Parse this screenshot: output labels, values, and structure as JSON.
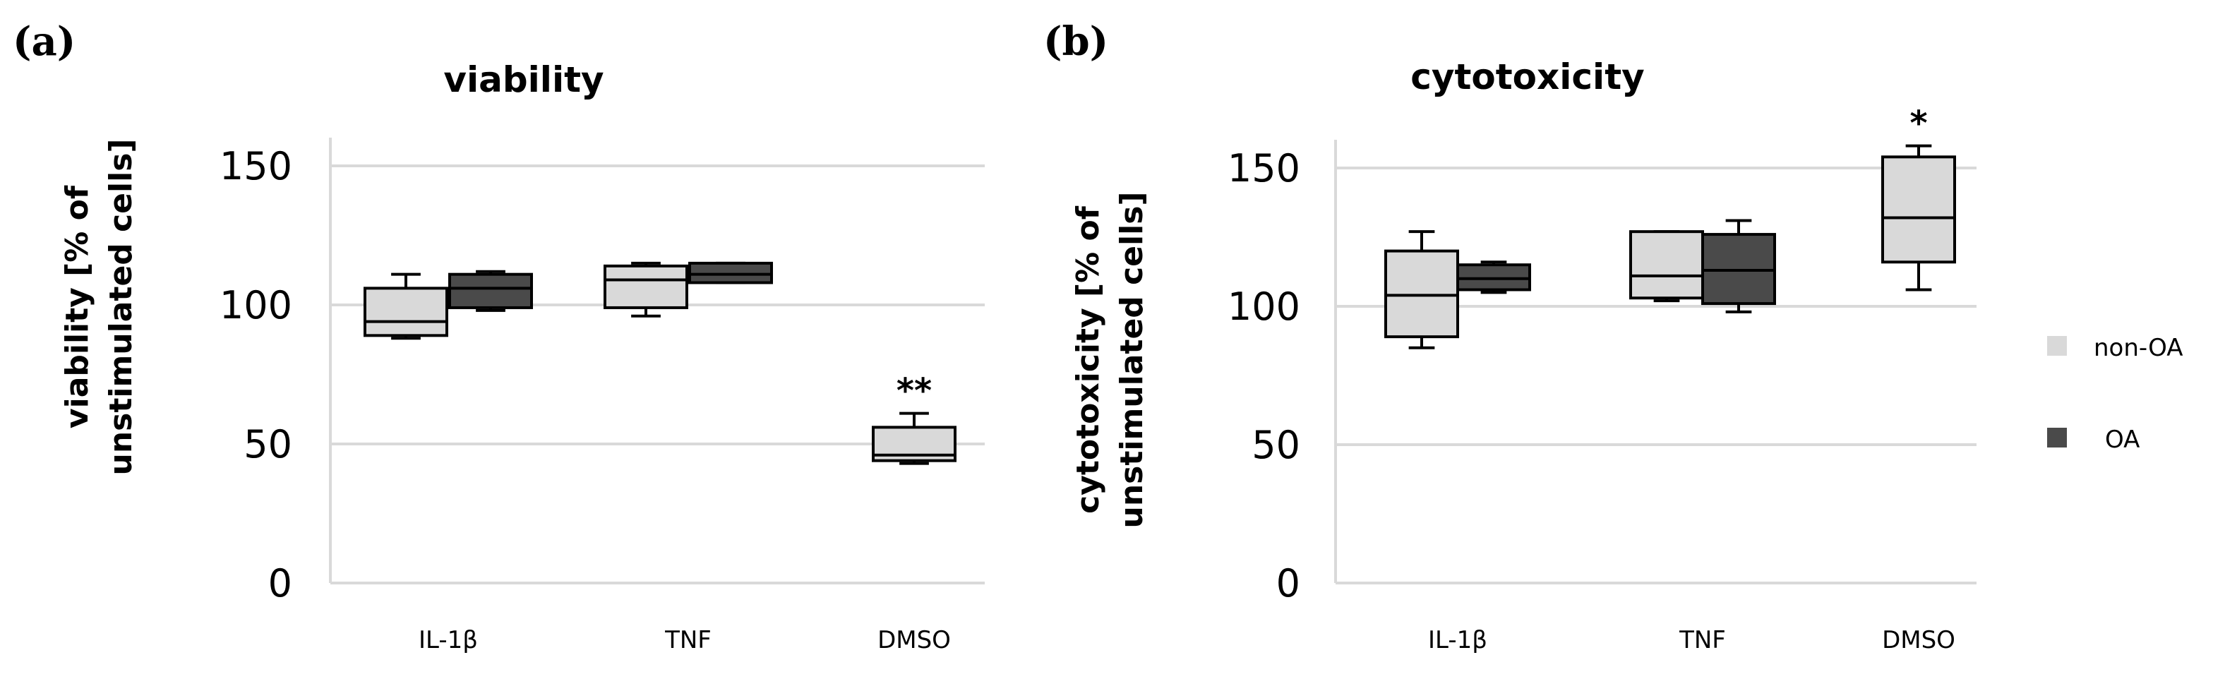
{
  "legend": [
    {
      "name": "non-OA",
      "color": "#d9d9d9"
    },
    {
      "name": "OA",
      "color": "#4a4a4a"
    }
  ],
  "chart_data": [
    {
      "type": "boxplot",
      "panel": "(a)",
      "title": "viability",
      "ylabel_line1": "viability [% of",
      "ylabel_line2": "unstimulated cells]",
      "xlabel": "",
      "ylim": [
        0,
        150
      ],
      "yticks": [
        0,
        50,
        100,
        150
      ],
      "categories": [
        "IL-1β",
        "TNF",
        "DMSO"
      ],
      "series": [
        {
          "name": "non-OA",
          "boxes": [
            {
              "category": "IL-1β",
              "min": 88,
              "q1": 89,
              "median": 94,
              "q3": 106,
              "max": 111
            },
            {
              "category": "TNF",
              "min": 96,
              "q1": 99,
              "median": 109,
              "q3": 114,
              "max": 115
            },
            {
              "category": "DMSO",
              "min": 43,
              "q1": 44,
              "median": 46,
              "q3": 56,
              "max": 61
            }
          ]
        },
        {
          "name": "OA",
          "boxes": [
            {
              "category": "IL-1β",
              "min": 98,
              "q1": 99,
              "median": 106,
              "q3": 111,
              "max": 112
            },
            {
              "category": "TNF",
              "min": 108,
              "q1": 108,
              "median": 111,
              "q3": 115,
              "max": 115
            }
          ]
        }
      ],
      "annotations": [
        {
          "category": "DMSO",
          "text": "**",
          "y": 65
        }
      ]
    },
    {
      "type": "boxplot",
      "panel": "(b)",
      "title": "cytotoxicity",
      "ylabel_line1": "cytotoxicity [% of",
      "ylabel_line2": "unstimulated cells]",
      "xlabel": "",
      "ylim": [
        0,
        150
      ],
      "yticks": [
        0,
        50,
        100,
        150
      ],
      "categories": [
        "IL-1β",
        "TNF",
        "DMSO"
      ],
      "series": [
        {
          "name": "non-OA",
          "boxes": [
            {
              "category": "IL-1β",
              "min": 85,
              "q1": 89,
              "median": 104,
              "q3": 120,
              "max": 127
            },
            {
              "category": "TNF",
              "min": 102,
              "q1": 103,
              "median": 111,
              "q3": 127,
              "max": 127
            },
            {
              "category": "DMSO",
              "min": 106,
              "q1": 116,
              "median": 132,
              "q3": 154,
              "max": 158
            }
          ]
        },
        {
          "name": "OA",
          "boxes": [
            {
              "category": "IL-1β",
              "min": 105,
              "q1": 106,
              "median": 110,
              "q3": 115,
              "max": 116
            },
            {
              "category": "TNF",
              "min": 98,
              "q1": 101,
              "median": 113,
              "q3": 126,
              "max": 131
            }
          ]
        }
      ],
      "annotations": [
        {
          "category": "DMSO",
          "text": "*",
          "y": 162
        }
      ]
    }
  ]
}
